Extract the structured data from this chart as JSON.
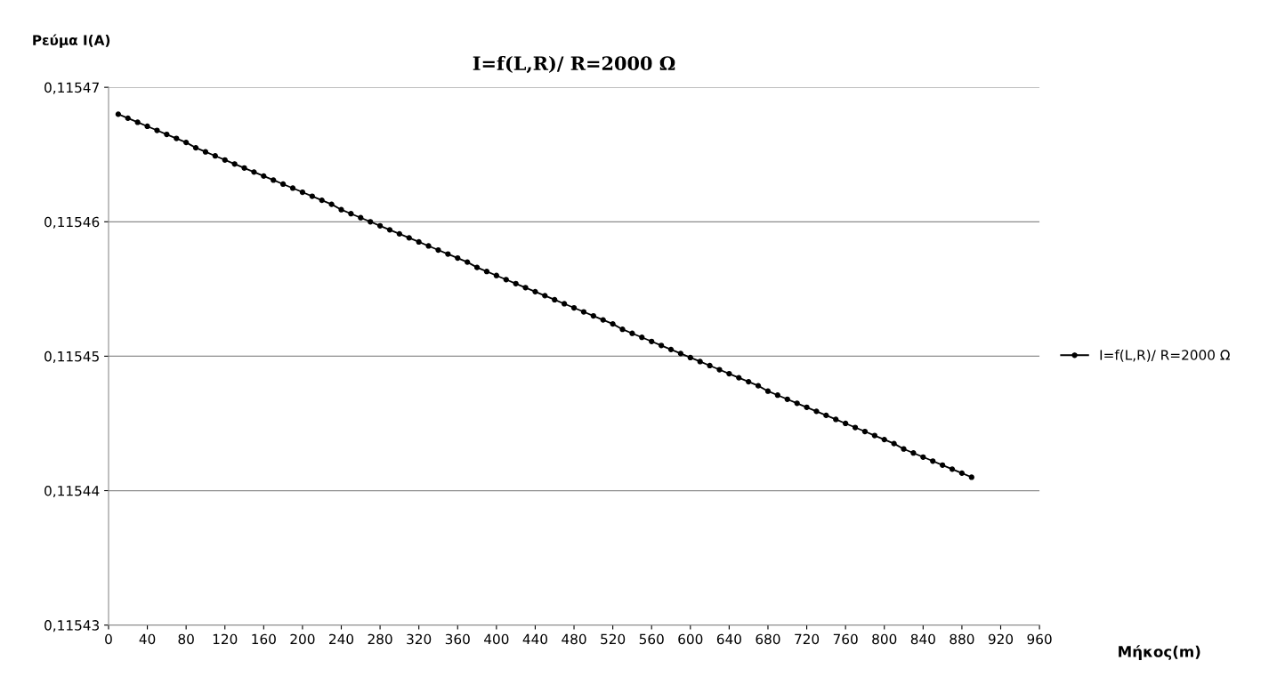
{
  "chart_data": {
    "type": "line",
    "title": "I=f(L,R)/ R=2000 Ω",
    "xlabel": "Μήκος(m)",
    "ylabel": "Ρεύμα I(A)",
    "x": [
      10,
      20,
      30,
      40,
      50,
      60,
      70,
      80,
      90,
      100,
      110,
      120,
      130,
      140,
      150,
      160,
      170,
      180,
      190,
      200,
      210,
      220,
      230,
      240,
      250,
      260,
      270,
      280,
      290,
      300,
      310,
      320,
      330,
      340,
      350,
      360,
      370,
      380,
      390,
      400,
      410,
      420,
      430,
      440,
      450,
      460,
      470,
      480,
      490,
      500,
      510,
      520,
      530,
      540,
      550,
      560,
      570,
      580,
      590,
      600,
      610,
      620,
      630,
      640,
      650,
      660,
      670,
      680,
      690,
      700,
      710,
      720,
      730,
      740,
      750,
      760,
      770,
      780,
      790,
      800,
      810,
      820,
      830,
      840,
      850,
      860,
      870,
      880,
      890
    ],
    "series": [
      {
        "name": "I=f(L,R)/ R=2000 Ω",
        "color": "#000000",
        "values": [
          0.115468,
          0.1154677,
          0.1154674,
          0.1154671,
          0.1154668,
          0.1154665,
          0.1154662,
          0.1154659,
          0.1154655,
          0.1154652,
          0.1154649,
          0.1154646,
          0.1154643,
          0.115464,
          0.1154637,
          0.1154634,
          0.1154631,
          0.1154628,
          0.1154625,
          0.1154622,
          0.1154619,
          0.1154616,
          0.1154613,
          0.1154609,
          0.1154606,
          0.1154603,
          0.11546,
          0.1154597,
          0.1154594,
          0.1154591,
          0.1154588,
          0.1154585,
          0.1154582,
          0.1154579,
          0.1154576,
          0.1154573,
          0.115457,
          0.1154566,
          0.1154563,
          0.115456,
          0.1154557,
          0.1154554,
          0.1154551,
          0.1154548,
          0.1154545,
          0.1154542,
          0.1154539,
          0.1154536,
          0.1154533,
          0.115453,
          0.1154527,
          0.1154524,
          0.115452,
          0.1154517,
          0.1154514,
          0.1154511,
          0.1154508,
          0.1154505,
          0.1154502,
          0.1154499,
          0.1154496,
          0.1154493,
          0.115449,
          0.1154487,
          0.1154484,
          0.1154481,
          0.1154478,
          0.1154474,
          0.1154471,
          0.1154468,
          0.1154465,
          0.1154462,
          0.1154459,
          0.1154456,
          0.1154453,
          0.115445,
          0.1154447,
          0.1154444,
          0.1154441,
          0.1154438,
          0.1154435,
          0.1154431,
          0.1154428,
          0.1154425,
          0.1154422,
          0.1154419,
          0.1154416,
          0.1154413,
          0.115441
        ]
      }
    ],
    "xlim": [
      0,
      960
    ],
    "xticks": [
      0,
      40,
      80,
      120,
      160,
      200,
      240,
      280,
      320,
      360,
      400,
      440,
      480,
      520,
      560,
      600,
      640,
      680,
      720,
      760,
      800,
      840,
      880,
      920,
      960
    ],
    "ylim": [
      0.11543,
      0.11547
    ],
    "yticks": [
      {
        "value": 0.11543,
        "label": "0,11543"
      },
      {
        "value": 0.11544,
        "label": "0,11544"
      },
      {
        "value": 0.11545,
        "label": "0,11545"
      },
      {
        "value": 0.11546,
        "label": "0,11546"
      },
      {
        "value": 0.11547,
        "label": "0,11547"
      }
    ],
    "grid": "y",
    "legend": "right",
    "marker": "circle",
    "line_style": "solid"
  }
}
